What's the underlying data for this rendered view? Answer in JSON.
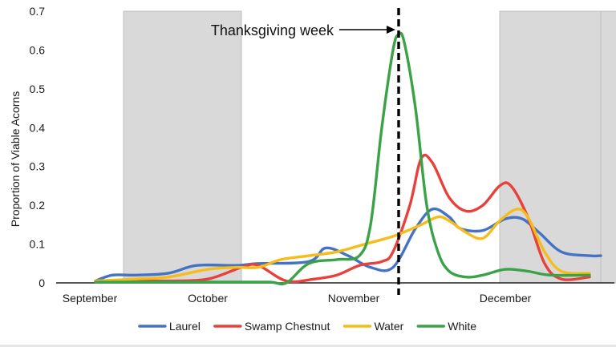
{
  "chart_data": {
    "type": "line",
    "title": "",
    "xlabel": "",
    "ylabel": "Proportion of Viable Acorns",
    "ylim": [
      0,
      0.7
    ],
    "yticks": [
      0,
      0.1,
      0.2,
      0.3,
      0.4,
      0.5,
      0.6,
      0.7
    ],
    "ytick_labels": [
      "0",
      "0.1",
      "0.2",
      "0.3",
      "0.4",
      "0.5",
      "0.6",
      "0.7"
    ],
    "x_axis": {
      "range": [
        0,
        100
      ],
      "tick_labels": [
        {
          "label": "September",
          "x": 6
        },
        {
          "label": "October",
          "x": 27
        },
        {
          "label": "November",
          "x": 53
        },
        {
          "label": "December",
          "x": 80
        }
      ]
    },
    "shaded_bands": [
      {
        "x_start": 12,
        "x_end": 33
      },
      {
        "x_start": 79,
        "x_end": 97
      },
      {
        "x_start": 97,
        "x_end": 100
      }
    ],
    "annotation": {
      "text": "Thanksgiving week",
      "x": 61
    },
    "legend_position": "bottom",
    "grid": false,
    "series": [
      {
        "name": "Laurel",
        "color": "#4472C4",
        "points": [
          [
            7,
            0.005
          ],
          [
            10,
            0.02
          ],
          [
            14,
            0.02
          ],
          [
            20,
            0.025
          ],
          [
            25,
            0.045
          ],
          [
            32,
            0.045
          ],
          [
            36,
            0.05
          ],
          [
            45,
            0.055
          ],
          [
            48,
            0.09
          ],
          [
            52,
            0.07
          ],
          [
            56,
            0.04
          ],
          [
            60,
            0.04
          ],
          [
            64,
            0.14
          ],
          [
            67,
            0.19
          ],
          [
            70,
            0.17
          ],
          [
            72,
            0.14
          ],
          [
            76,
            0.135
          ],
          [
            80,
            0.165
          ],
          [
            83,
            0.165
          ],
          [
            86,
            0.13
          ],
          [
            90,
            0.08
          ],
          [
            95,
            0.07
          ],
          [
            97,
            0.07
          ]
        ]
      },
      {
        "name": "Swamp Chestnut",
        "color": "#E8413C",
        "points": [
          [
            7,
            0.005
          ],
          [
            14,
            0.005
          ],
          [
            20,
            0.005
          ],
          [
            27,
            0.01
          ],
          [
            33,
            0.04
          ],
          [
            36,
            0.045
          ],
          [
            41,
            0.005
          ],
          [
            46,
            0.01
          ],
          [
            50,
            0.02
          ],
          [
            54,
            0.045
          ],
          [
            58,
            0.055
          ],
          [
            60,
            0.08
          ],
          [
            63,
            0.2
          ],
          [
            65,
            0.32
          ],
          [
            67,
            0.31
          ],
          [
            70,
            0.22
          ],
          [
            73,
            0.185
          ],
          [
            76,
            0.2
          ],
          [
            79,
            0.25
          ],
          [
            81,
            0.25
          ],
          [
            84,
            0.17
          ],
          [
            87,
            0.05
          ],
          [
            90,
            0.01
          ],
          [
            95,
            0.015
          ]
        ]
      },
      {
        "name": "Water",
        "color": "#F6BC1A",
        "points": [
          [
            7,
            0.005
          ],
          [
            14,
            0.01
          ],
          [
            20,
            0.015
          ],
          [
            27,
            0.035
          ],
          [
            32,
            0.04
          ],
          [
            36,
            0.04
          ],
          [
            40,
            0.06
          ],
          [
            45,
            0.07
          ],
          [
            50,
            0.08
          ],
          [
            55,
            0.1
          ],
          [
            60,
            0.12
          ],
          [
            65,
            0.15
          ],
          [
            68,
            0.17
          ],
          [
            70,
            0.16
          ],
          [
            73,
            0.13
          ],
          [
            76,
            0.115
          ],
          [
            79,
            0.16
          ],
          [
            82,
            0.19
          ],
          [
            84,
            0.17
          ],
          [
            87,
            0.08
          ],
          [
            90,
            0.03
          ],
          [
            95,
            0.025
          ]
        ]
      },
      {
        "name": "White",
        "color": "#3AA348",
        "points": [
          [
            7,
            0.002
          ],
          [
            14,
            0.002
          ],
          [
            20,
            0.002
          ],
          [
            30,
            0.002
          ],
          [
            38,
            0.002
          ],
          [
            41,
            0.0
          ],
          [
            45,
            0.05
          ],
          [
            50,
            0.06
          ],
          [
            54,
            0.07
          ],
          [
            56,
            0.15
          ],
          [
            58,
            0.4
          ],
          [
            60,
            0.6
          ],
          [
            61,
            0.64
          ],
          [
            62,
            0.62
          ],
          [
            64,
            0.45
          ],
          [
            66,
            0.2
          ],
          [
            68,
            0.08
          ],
          [
            70,
            0.03
          ],
          [
            73,
            0.015
          ],
          [
            76,
            0.02
          ],
          [
            80,
            0.035
          ],
          [
            84,
            0.03
          ],
          [
            88,
            0.02
          ],
          [
            95,
            0.02
          ]
        ]
      }
    ]
  }
}
